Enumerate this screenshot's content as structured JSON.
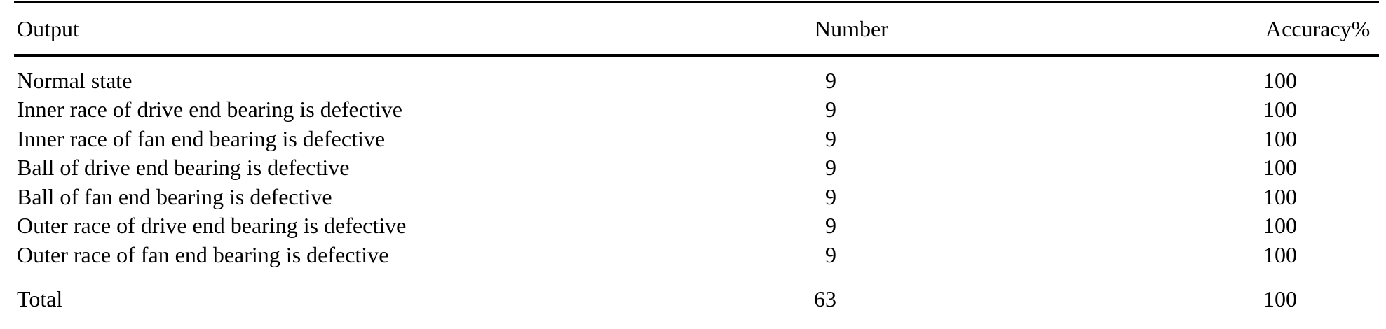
{
  "colors": {
    "background": "#ffffff",
    "text": "#000000",
    "rule": "#000000"
  },
  "table": {
    "columns": [
      {
        "key": "output",
        "label": "Output"
      },
      {
        "key": "number",
        "label": "Number"
      },
      {
        "key": "accuracy",
        "label": "Accuracy%"
      }
    ],
    "rows": [
      {
        "output": "Normal state",
        "number": "9",
        "accuracy": "100"
      },
      {
        "output": "Inner race of drive end bearing is defective",
        "number": "9",
        "accuracy": "100"
      },
      {
        "output": "Inner race of fan end bearing is defective",
        "number": "9",
        "accuracy": "100"
      },
      {
        "output": "Ball of drive end bearing is defective",
        "number": "9",
        "accuracy": "100"
      },
      {
        "output": "Ball of fan end bearing is defective",
        "number": "9",
        "accuracy": "100"
      },
      {
        "output": "Outer race of drive end bearing is defective",
        "number": "9",
        "accuracy": "100"
      },
      {
        "output": "Outer race of fan end bearing is defective",
        "number": "9",
        "accuracy": "100"
      }
    ],
    "total_row": {
      "output": "Total",
      "number": "63",
      "accuracy": "100"
    }
  },
  "chart_data": {
    "type": "table",
    "title": "",
    "columns": [
      "Output",
      "Number",
      "Accuracy%"
    ],
    "rows": [
      [
        "Normal state",
        9,
        100
      ],
      [
        "Inner race of drive end bearing is defective",
        9,
        100
      ],
      [
        "Inner race of fan end bearing is defective",
        9,
        100
      ],
      [
        "Ball of drive end bearing is defective",
        9,
        100
      ],
      [
        "Ball of fan end bearing is defective",
        9,
        100
      ],
      [
        "Outer race of drive end bearing is defective",
        9,
        100
      ],
      [
        "Outer race of fan end bearing is defective",
        9,
        100
      ],
      [
        "Total",
        63,
        100
      ]
    ]
  }
}
